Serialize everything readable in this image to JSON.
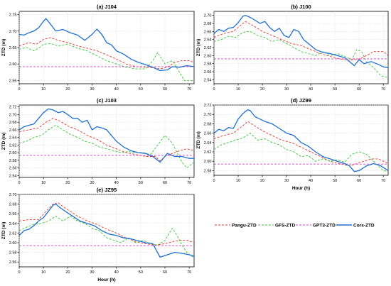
{
  "legend": [
    {
      "name": "Pangu-ZTD",
      "color": "#e8372a",
      "dash": "3,2"
    },
    {
      "name": "GFS-ZTD",
      "color": "#38c738",
      "dash": "3,2"
    },
    {
      "name": "GPT3-ZTD",
      "color": "#d040d0",
      "dash": "3,2"
    },
    {
      "name": "Cors-ZTD",
      "color": "#1f6fd1",
      "dash": ""
    }
  ],
  "chart_data": [
    {
      "type": "line",
      "title": "(a) J104",
      "xlabel": "",
      "ylabel": "ZTD (m)",
      "xlim": [
        0,
        72
      ],
      "ylim": [
        2.54,
        2.76
      ],
      "xticks": [
        0,
        10,
        20,
        30,
        40,
        50,
        60,
        70
      ],
      "yticks": [
        2.55,
        2.6,
        2.65,
        2.7,
        2.75
      ],
      "yfmt": 2,
      "grid": true,
      "series": [
        {
          "name": "Pangu-ZTD",
          "x": [
            0,
            4,
            7,
            10,
            13,
            16,
            20,
            24,
            28,
            32,
            36,
            40,
            44,
            48,
            52,
            56,
            58,
            61,
            64,
            67,
            70,
            72
          ],
          "y": [
            2.655,
            2.665,
            2.66,
            2.675,
            2.68,
            2.672,
            2.665,
            2.655,
            2.648,
            2.64,
            2.628,
            2.615,
            2.6,
            2.592,
            2.59,
            2.588,
            2.585,
            2.59,
            2.605,
            2.61,
            2.61,
            2.605
          ]
        },
        {
          "name": "GFS-ZTD",
          "x": [
            0,
            3,
            6,
            8,
            10,
            13,
            16,
            20,
            24,
            28,
            32,
            36,
            40,
            44,
            48,
            52,
            55,
            57,
            60,
            63,
            66,
            68,
            70,
            72
          ],
          "y": [
            2.645,
            2.65,
            2.64,
            2.648,
            2.66,
            2.662,
            2.655,
            2.66,
            2.648,
            2.64,
            2.625,
            2.61,
            2.6,
            2.59,
            2.585,
            2.585,
            2.61,
            2.635,
            2.6,
            2.61,
            2.575,
            2.55,
            2.55,
            2.55
          ]
        },
        {
          "name": "GPT3-ZTD",
          "x": [
            0,
            72
          ],
          "y": [
            2.592,
            2.592
          ]
        },
        {
          "name": "Cors-ZTD",
          "x": [
            0,
            2,
            4,
            6,
            8,
            10,
            11,
            13,
            15,
            18,
            21,
            24,
            27,
            30,
            32,
            34,
            36,
            38,
            40,
            43,
            46,
            49,
            52,
            55,
            58,
            61,
            63,
            66,
            69,
            72
          ],
          "y": [
            2.69,
            2.688,
            2.695,
            2.7,
            2.71,
            2.73,
            2.738,
            2.72,
            2.7,
            2.705,
            2.695,
            2.688,
            2.672,
            2.69,
            2.706,
            2.69,
            2.665,
            2.658,
            2.64,
            2.63,
            2.615,
            2.605,
            2.598,
            2.59,
            2.58,
            2.582,
            2.592,
            2.59,
            2.595,
            2.592
          ]
        }
      ]
    },
    {
      "type": "line",
      "title": "(b) J100",
      "xlabel": "",
      "ylabel": "ZTD (m)",
      "xlim": [
        0,
        72
      ],
      "ylim": [
        2.53,
        2.71
      ],
      "xticks": [
        0,
        10,
        20,
        30,
        40,
        50,
        60,
        70
      ],
      "yticks": [
        2.54,
        2.56,
        2.58,
        2.6,
        2.62,
        2.64,
        2.66,
        2.68,
        2.7
      ],
      "yfmt": 2,
      "grid": true,
      "series": [
        {
          "name": "Pangu-ZTD",
          "x": [
            0,
            4,
            8,
            11,
            13,
            16,
            20,
            24,
            28,
            32,
            36,
            40,
            44,
            48,
            52,
            56,
            60,
            63,
            66,
            70,
            72
          ],
          "y": [
            2.645,
            2.655,
            2.66,
            2.675,
            2.685,
            2.675,
            2.66,
            2.65,
            2.64,
            2.63,
            2.625,
            2.615,
            2.605,
            2.598,
            2.592,
            2.588,
            2.592,
            2.6,
            2.61,
            2.61,
            2.6
          ]
        },
        {
          "name": "GFS-ZTD",
          "x": [
            0,
            3,
            6,
            9,
            12,
            15,
            18,
            21,
            24,
            27,
            30,
            33,
            36,
            39,
            42,
            45,
            48,
            51,
            54,
            57,
            59,
            61,
            63,
            66,
            69,
            72
          ],
          "y": [
            2.635,
            2.64,
            2.648,
            2.645,
            2.658,
            2.66,
            2.65,
            2.645,
            2.635,
            2.64,
            2.63,
            2.62,
            2.61,
            2.605,
            2.6,
            2.61,
            2.6,
            2.605,
            2.598,
            2.59,
            2.615,
            2.61,
            2.585,
            2.57,
            2.55,
            2.545
          ]
        },
        {
          "name": "GPT3-ZTD",
          "x": [
            0,
            72
          ],
          "y": [
            2.592,
            2.592
          ]
        },
        {
          "name": "Cors-ZTD",
          "x": [
            0,
            2,
            4,
            6,
            8,
            10,
            12,
            13,
            15,
            17,
            19,
            21,
            23,
            25,
            27,
            29,
            31,
            33,
            35,
            37,
            39,
            42,
            45,
            48,
            51,
            54,
            56,
            58,
            60,
            62,
            65,
            68,
            70,
            72
          ],
          "y": [
            2.655,
            2.665,
            2.66,
            2.668,
            2.67,
            2.682,
            2.698,
            2.7,
            2.695,
            2.688,
            2.68,
            2.685,
            2.67,
            2.66,
            2.668,
            2.65,
            2.645,
            2.665,
            2.66,
            2.64,
            2.63,
            2.615,
            2.608,
            2.605,
            2.6,
            2.595,
            2.585,
            2.575,
            2.59,
            2.58,
            2.585,
            2.578,
            2.572,
            2.57
          ]
        }
      ]
    },
    {
      "type": "line",
      "title": "(c) J103",
      "xlabel": "",
      "ylabel": "ZTD (m)",
      "xlim": [
        0,
        72
      ],
      "ylim": [
        2.535,
        2.725
      ],
      "xticks": [
        0,
        10,
        20,
        30,
        40,
        50,
        60,
        70
      ],
      "yticks": [
        2.54,
        2.56,
        2.58,
        2.6,
        2.62,
        2.64,
        2.66,
        2.68,
        2.7,
        2.72
      ],
      "yfmt": 2,
      "grid": true,
      "series": [
        {
          "name": "Pangu-ZTD",
          "x": [
            0,
            4,
            8,
            11,
            14,
            17,
            20,
            24,
            28,
            32,
            36,
            40,
            44,
            48,
            52,
            56,
            58,
            60,
            63,
            66,
            69,
            72
          ],
          "y": [
            2.655,
            2.66,
            2.665,
            2.68,
            2.69,
            2.682,
            2.67,
            2.66,
            2.645,
            2.635,
            2.62,
            2.61,
            2.6,
            2.595,
            2.59,
            2.59,
            2.578,
            2.59,
            2.598,
            2.605,
            2.61,
            2.605
          ]
        },
        {
          "name": "GFS-ZTD",
          "x": [
            0,
            3,
            6,
            9,
            12,
            15,
            18,
            21,
            24,
            27,
            30,
            33,
            36,
            39,
            42,
            45,
            48,
            51,
            54,
            57,
            60,
            63,
            65,
            67,
            69,
            71,
            72
          ],
          "y": [
            2.625,
            2.63,
            2.64,
            2.645,
            2.66,
            2.672,
            2.66,
            2.648,
            2.64,
            2.63,
            2.625,
            2.615,
            2.61,
            2.605,
            2.6,
            2.603,
            2.6,
            2.6,
            2.595,
            2.62,
            2.645,
            2.625,
            2.6,
            2.575,
            2.56,
            2.57,
            2.575
          ]
        },
        {
          "name": "GPT3-ZTD",
          "x": [
            0,
            72
          ],
          "y": [
            2.593,
            2.593
          ]
        },
        {
          "name": "Cors-ZTD",
          "x": [
            0,
            2,
            4,
            6,
            8,
            10,
            12,
            14,
            16,
            18,
            20,
            22,
            24,
            26,
            28,
            30,
            32,
            34,
            36,
            38,
            40,
            43,
            46,
            49,
            52,
            55,
            58,
            61,
            64,
            67,
            70,
            72
          ],
          "y": [
            2.66,
            2.668,
            2.672,
            2.675,
            2.69,
            2.705,
            2.715,
            2.712,
            2.705,
            2.708,
            2.7,
            2.69,
            2.69,
            2.68,
            2.685,
            2.66,
            2.668,
            2.665,
            2.66,
            2.645,
            2.63,
            2.615,
            2.605,
            2.6,
            2.598,
            2.59,
            2.575,
            2.598,
            2.59,
            2.59,
            2.585,
            2.585
          ]
        }
      ]
    },
    {
      "type": "line",
      "title": "(d) JZ99",
      "xlabel": "Hour (h)",
      "ylabel": "ZTD (m)",
      "xlim": [
        0,
        72
      ],
      "ylim": [
        2.57,
        2.72
      ],
      "xticks": [
        0,
        10,
        20,
        30,
        40,
        50,
        60,
        70
      ],
      "yticks": [
        2.58,
        2.6,
        2.62,
        2.64,
        2.66,
        2.68,
        2.7,
        2.72
      ],
      "yfmt": 2,
      "grid": true,
      "series": [
        {
          "name": "Pangu-ZTD",
          "x": [
            0,
            4,
            8,
            11,
            14,
            17,
            20,
            24,
            28,
            32,
            36,
            40,
            44,
            48,
            52,
            56,
            59,
            62,
            65,
            68,
            70,
            72
          ],
          "y": [
            2.648,
            2.655,
            2.66,
            2.672,
            2.685,
            2.675,
            2.665,
            2.655,
            2.645,
            2.64,
            2.63,
            2.62,
            2.61,
            2.6,
            2.595,
            2.59,
            2.595,
            2.6,
            2.605,
            2.605,
            2.6,
            2.595
          ]
        },
        {
          "name": "GFS-ZTD",
          "x": [
            0,
            3,
            6,
            9,
            12,
            15,
            18,
            21,
            24,
            27,
            30,
            33,
            36,
            39,
            42,
            45,
            48,
            51,
            54,
            57,
            60,
            63,
            66,
            68,
            70,
            72
          ],
          "y": [
            2.625,
            2.635,
            2.64,
            2.645,
            2.65,
            2.66,
            2.645,
            2.648,
            2.64,
            2.635,
            2.625,
            2.62,
            2.61,
            2.612,
            2.6,
            2.605,
            2.6,
            2.603,
            2.598,
            2.615,
            2.62,
            2.615,
            2.6,
            2.59,
            2.58,
            2.578
          ]
        },
        {
          "name": "GPT3-ZTD",
          "x": [
            0,
            72
          ],
          "y": [
            2.594,
            2.594
          ]
        },
        {
          "name": "Cors-ZTD",
          "x": [
            0,
            2,
            4,
            6,
            8,
            10,
            12,
            14,
            15,
            17,
            19,
            21,
            24,
            27,
            30,
            33,
            36,
            39,
            42,
            45,
            48,
            51,
            54,
            56,
            58,
            60,
            63,
            66,
            69,
            72
          ],
          "y": [
            2.66,
            2.668,
            2.665,
            2.672,
            2.67,
            2.69,
            2.702,
            2.71,
            2.708,
            2.695,
            2.69,
            2.685,
            2.68,
            2.67,
            2.66,
            2.655,
            2.64,
            2.632,
            2.62,
            2.61,
            2.605,
            2.6,
            2.595,
            2.59,
            2.578,
            2.58,
            2.59,
            2.595,
            2.59,
            2.58
          ]
        }
      ]
    },
    {
      "type": "line",
      "title": "(e) JZ95",
      "xlabel": "Hour (h)",
      "ylabel": "ZTD (m)",
      "xlim": [
        0,
        72
      ],
      "ylim": [
        2.55,
        2.7
      ],
      "xticks": [
        0,
        10,
        20,
        30,
        40,
        50,
        60,
        70
      ],
      "yticks": [
        2.56,
        2.58,
        2.6,
        2.62,
        2.64,
        2.66,
        2.68,
        2.7
      ],
      "yfmt": 2,
      "grid": true,
      "series": [
        {
          "name": "Pangu-ZTD",
          "x": [
            0,
            4,
            8,
            11,
            14,
            16,
            18,
            21,
            24,
            28,
            32,
            36,
            40,
            44,
            48,
            52,
            56,
            60,
            63,
            66,
            69,
            72
          ],
          "y": [
            2.645,
            2.648,
            2.648,
            2.665,
            2.68,
            2.683,
            2.675,
            2.665,
            2.655,
            2.645,
            2.638,
            2.628,
            2.62,
            2.61,
            2.602,
            2.598,
            2.595,
            2.598,
            2.602,
            2.605,
            2.605,
            2.6
          ]
        },
        {
          "name": "GFS-ZTD",
          "x": [
            0,
            3,
            6,
            9,
            12,
            15,
            18,
            21,
            24,
            27,
            30,
            33,
            36,
            39,
            42,
            45,
            48,
            51,
            54,
            57,
            60,
            63,
            65,
            67,
            69,
            71,
            72
          ],
          "y": [
            2.625,
            2.632,
            2.638,
            2.64,
            2.645,
            2.655,
            2.645,
            2.655,
            2.645,
            2.64,
            2.63,
            2.625,
            2.61,
            2.605,
            2.6,
            2.61,
            2.6,
            2.605,
            2.598,
            2.595,
            2.605,
            2.63,
            2.615,
            2.595,
            2.58,
            2.572,
            2.57
          ]
        },
        {
          "name": "GPT3-ZTD",
          "x": [
            0,
            72
          ],
          "y": [
            2.594,
            2.594
          ]
        },
        {
          "name": "Cors-ZTD",
          "x": [
            0,
            2,
            4,
            6,
            8,
            10,
            12,
            14,
            15,
            17,
            19,
            22,
            25,
            28,
            31,
            34,
            37,
            40,
            43,
            46,
            49,
            52,
            55,
            58,
            61,
            64,
            67,
            70,
            72
          ],
          "y": [
            2.615,
            2.625,
            2.628,
            2.635,
            2.645,
            2.652,
            2.665,
            2.678,
            2.68,
            2.672,
            2.665,
            2.655,
            2.645,
            2.64,
            2.635,
            2.625,
            2.618,
            2.615,
            2.61,
            2.608,
            2.604,
            2.6,
            2.598,
            2.57,
            2.575,
            2.58,
            2.578,
            2.575,
            2.572
          ]
        }
      ]
    }
  ]
}
